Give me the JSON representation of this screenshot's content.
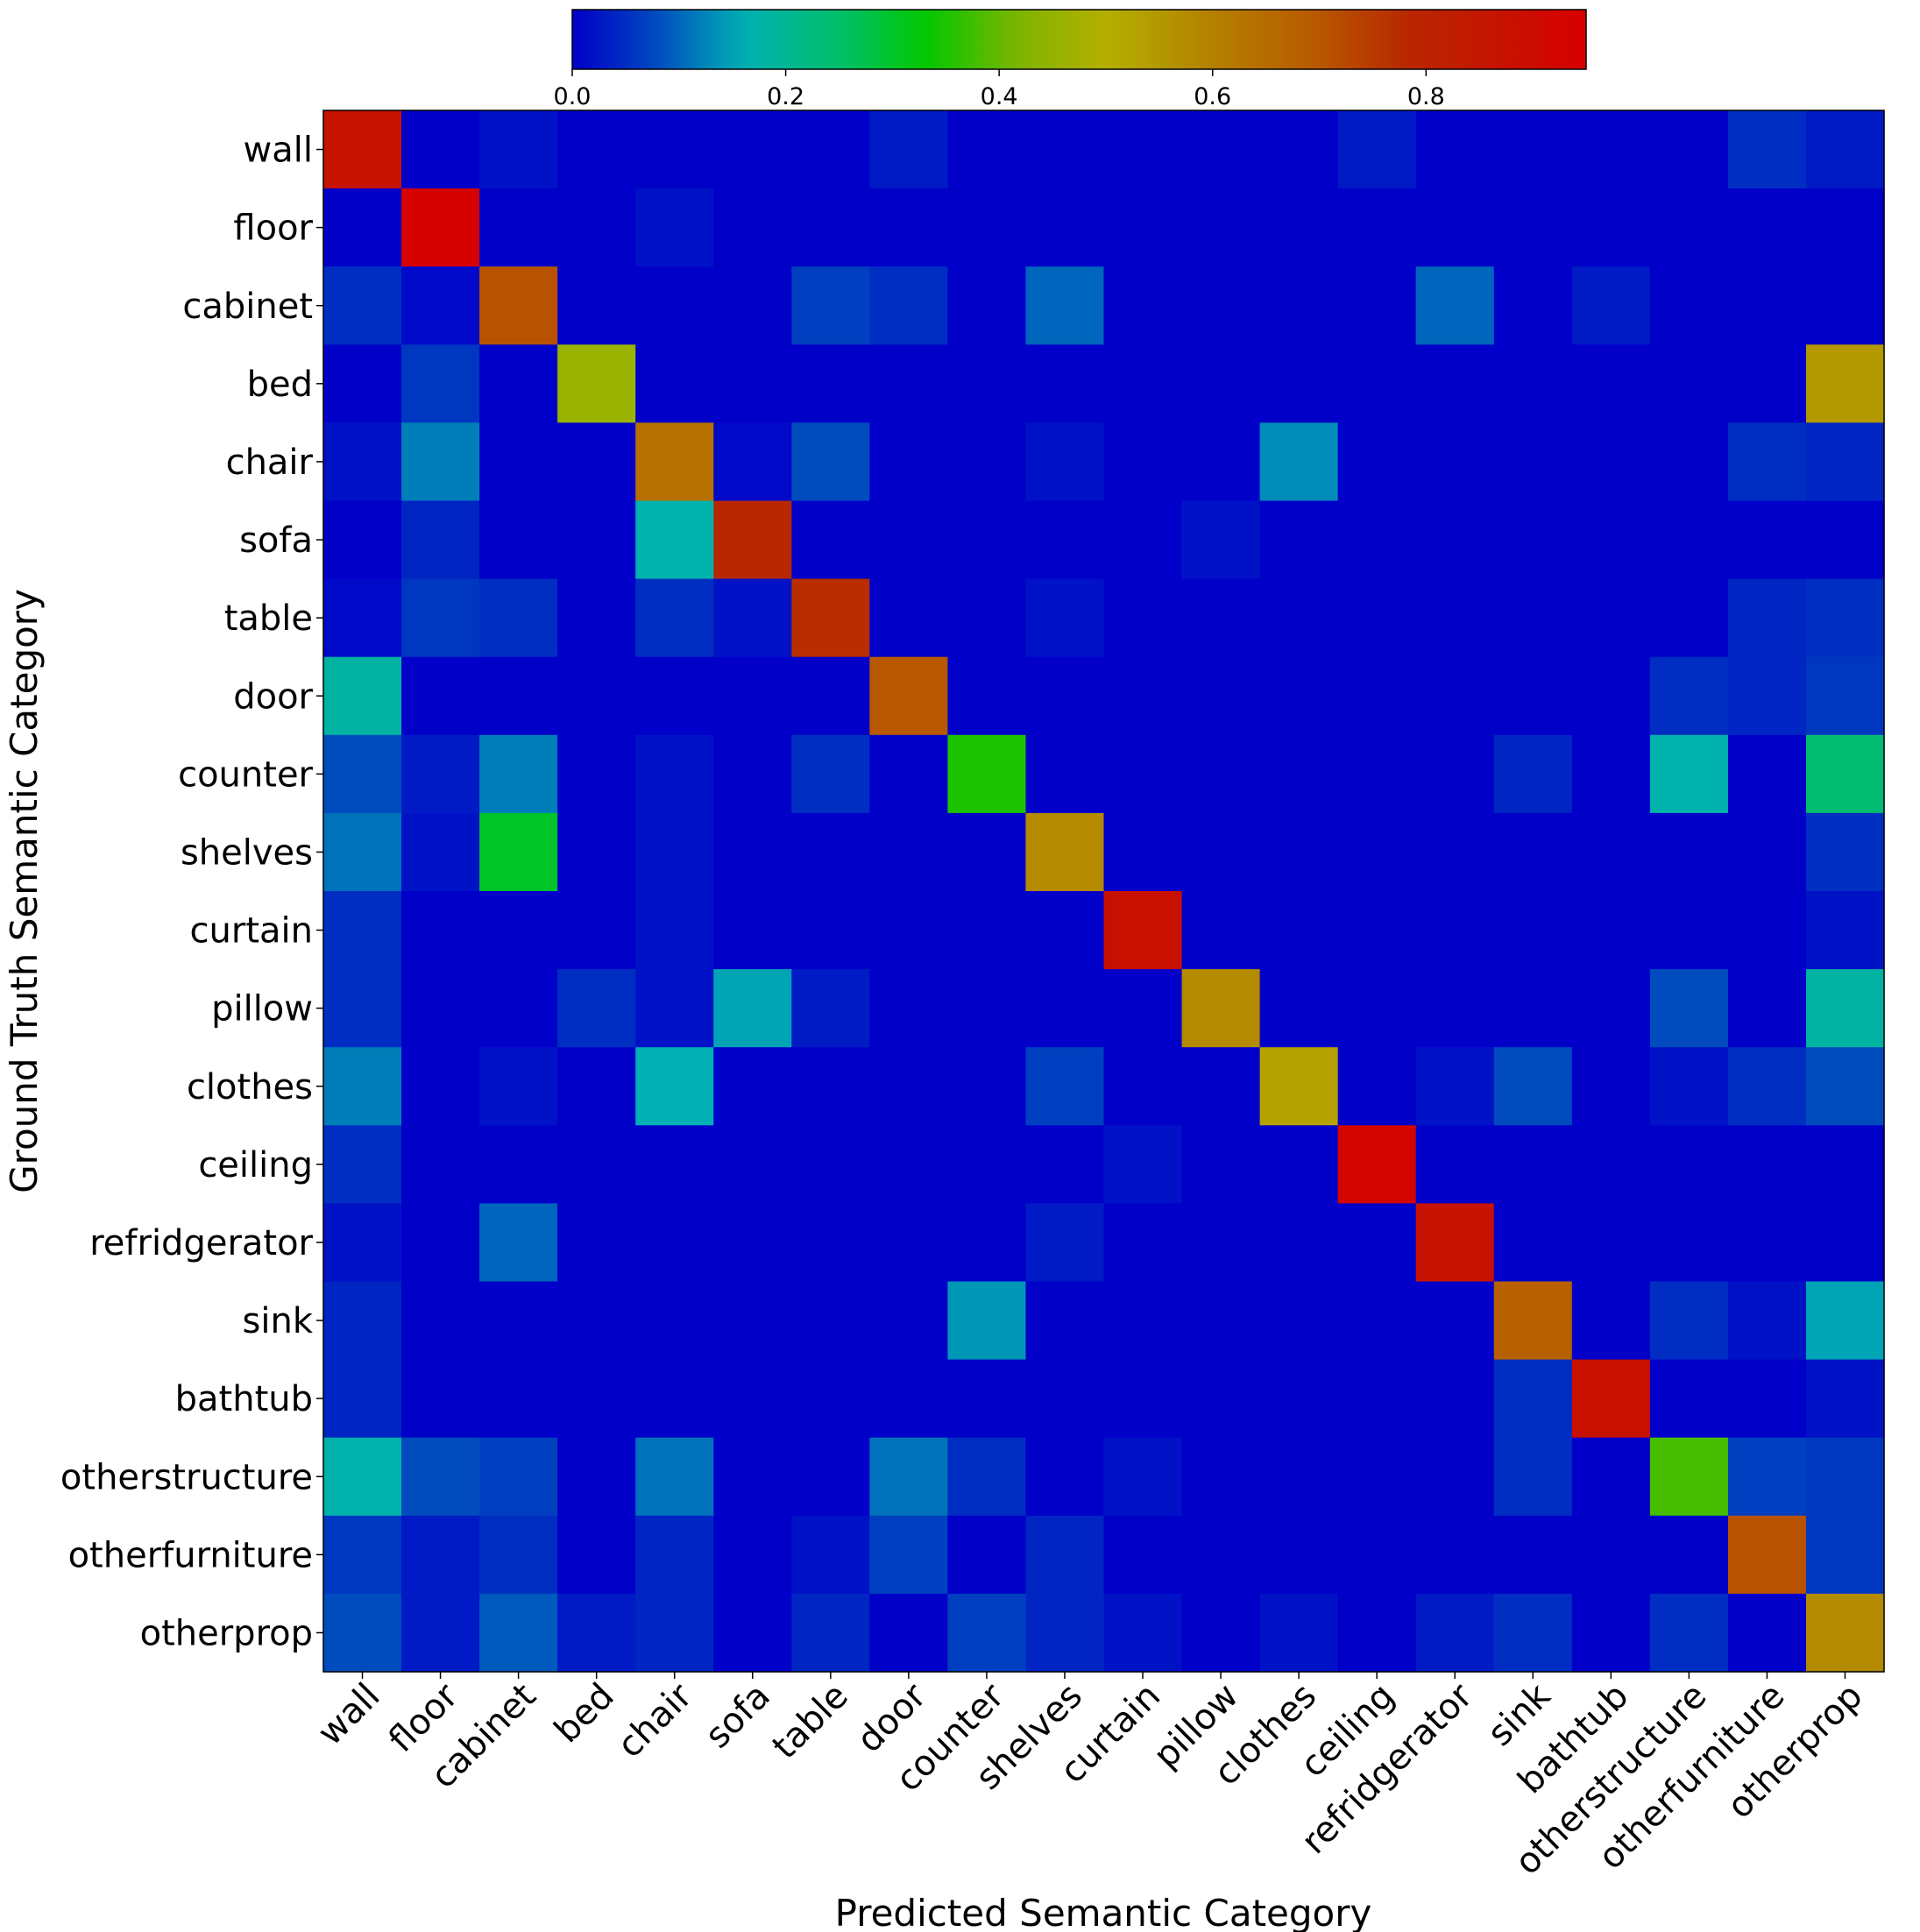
{
  "chart_data": {
    "type": "heatmap",
    "title": "",
    "xlabel": "Predicted Semantic Category",
    "ylabel": "Ground Truth Semantic Category",
    "x_categories": [
      "wall",
      "floor",
      "cabinet",
      "bed",
      "chair",
      "sofa",
      "table",
      "door",
      "counter",
      "shelves",
      "curtain",
      "pillow",
      "clothes",
      "ceiling",
      "refridgerator",
      "sink",
      "bathtub",
      "otherstructure",
      "otherfurniture",
      "otherprop"
    ],
    "y_categories": [
      "wall",
      "floor",
      "cabinet",
      "bed",
      "chair",
      "sofa",
      "table",
      "door",
      "counter",
      "shelves",
      "curtain",
      "pillow",
      "clothes",
      "ceiling",
      "refridgerator",
      "sink",
      "bathtub",
      "otherstructure",
      "otherfurniture",
      "otherprop"
    ],
    "values": [
      [
        0.87,
        0,
        0.02,
        0,
        0,
        0,
        0,
        0.03,
        0,
        0,
        0,
        0,
        0,
        0.03,
        0,
        0,
        0,
        0,
        0.05,
        0.03
      ],
      [
        0,
        0.94,
        0,
        0,
        0.02,
        0,
        0,
        0,
        0,
        0,
        0,
        0,
        0,
        0,
        0,
        0,
        0,
        0,
        0,
        0
      ],
      [
        0.05,
        0.01,
        0.71,
        0,
        0,
        0,
        0.07,
        0.05,
        0,
        0.1,
        0,
        0,
        0,
        0,
        0.1,
        0,
        0.03,
        0,
        0,
        0
      ],
      [
        0,
        0.06,
        0,
        0.46,
        0,
        0,
        0,
        0,
        0,
        0,
        0,
        0,
        0,
        0,
        0,
        0,
        0,
        0,
        0,
        0.55
      ],
      [
        0.02,
        0.12,
        0,
        0,
        0.64,
        0.01,
        0.08,
        0,
        0,
        0.02,
        0,
        0,
        0.13,
        0,
        0,
        0,
        0,
        0,
        0.05,
        0.04
      ],
      [
        0,
        0.04,
        0,
        0,
        0.17,
        0.78,
        0,
        0,
        0,
        0,
        0,
        0.02,
        0,
        0,
        0,
        0,
        0,
        0,
        0,
        0
      ],
      [
        0.01,
        0.06,
        0.05,
        0,
        0.05,
        0.02,
        0.77,
        0,
        0,
        0.02,
        0,
        0,
        0,
        0,
        0,
        0,
        0,
        0,
        0.04,
        0.05
      ],
      [
        0.18,
        0,
        0,
        0,
        0,
        0,
        0,
        0.7,
        0,
        0,
        0,
        0,
        0,
        0,
        0,
        0,
        0,
        0.05,
        0.04,
        0.06
      ],
      [
        0.08,
        0.03,
        0.12,
        0,
        0.02,
        0,
        0.05,
        0,
        0.35,
        0,
        0,
        0,
        0,
        0,
        0,
        0.04,
        0,
        0.17,
        0,
        0.24
      ],
      [
        0.11,
        0.02,
        0.3,
        0,
        0.02,
        0,
        0,
        0,
        0,
        0.58,
        0,
        0,
        0,
        0,
        0,
        0,
        0,
        0,
        0,
        0.05
      ],
      [
        0.05,
        0,
        0,
        0,
        0.02,
        0,
        0,
        0,
        0,
        0,
        0.88,
        0,
        0,
        0,
        0,
        0,
        0,
        0,
        0,
        0.02
      ],
      [
        0.05,
        0,
        0,
        0.05,
        0.02,
        0.15,
        0.03,
        0,
        0,
        0,
        0,
        0.58,
        0,
        0,
        0,
        0,
        0,
        0.08,
        0,
        0.18
      ],
      [
        0.12,
        0,
        0.02,
        0,
        0.16,
        0,
        0,
        0,
        0,
        0.07,
        0,
        0,
        0.53,
        0,
        0.02,
        0.08,
        0,
        0.02,
        0.05,
        0.08
      ],
      [
        0.05,
        0,
        0,
        0,
        0,
        0,
        0,
        0,
        0,
        0,
        0.02,
        0,
        0,
        0.93,
        0,
        0,
        0,
        0,
        0,
        0
      ],
      [
        0.02,
        0,
        0.1,
        0,
        0,
        0,
        0,
        0,
        0,
        0.03,
        0,
        0,
        0,
        0,
        0.87,
        0,
        0,
        0,
        0,
        0
      ],
      [
        0.04,
        0,
        0,
        0,
        0,
        0,
        0,
        0,
        0.14,
        0,
        0,
        0,
        0,
        0,
        0,
        0.68,
        0,
        0.05,
        0.02,
        0.15
      ],
      [
        0.04,
        0,
        0,
        0,
        0,
        0,
        0,
        0,
        0,
        0,
        0,
        0,
        0,
        0,
        0,
        0.05,
        0.88,
        0,
        0,
        0.02
      ],
      [
        0.17,
        0.08,
        0.07,
        0,
        0.11,
        0,
        0,
        0.11,
        0.05,
        0,
        0.02,
        0,
        0,
        0,
        0,
        0.05,
        0,
        0.38,
        0.07,
        0.06
      ],
      [
        0.06,
        0.03,
        0.05,
        0,
        0.04,
        0,
        0.02,
        0.07,
        0,
        0.04,
        0,
        0,
        0,
        0,
        0,
        0,
        0,
        0,
        0.71,
        0.06
      ],
      [
        0.08,
        0.03,
        0.09,
        0.03,
        0.04,
        0,
        0.04,
        0,
        0.07,
        0.04,
        0.02,
        0,
        0.02,
        0,
        0.03,
        0.05,
        0,
        0.05,
        0,
        0.58
      ]
    ],
    "colorbar": {
      "min": 0.0,
      "max": 0.95,
      "ticks": [
        0.0,
        0.2,
        0.4,
        0.6,
        0.8
      ],
      "tick_labels": [
        "0.0",
        "0.2",
        "0.4",
        "0.6",
        "0.8"
      ],
      "placement": "top",
      "colormap": "gist_ncar-like (blue-cyan-green-olive-red)"
    },
    "colormap_stops": [
      {
        "v": 0.0,
        "color": "#0000c8"
      },
      {
        "v": 0.07,
        "color": "#0040c0"
      },
      {
        "v": 0.16,
        "color": "#00b0b4"
      },
      {
        "v": 0.26,
        "color": "#00c060"
      },
      {
        "v": 0.33,
        "color": "#00c800"
      },
      {
        "v": 0.42,
        "color": "#80b400"
      },
      {
        "v": 0.5,
        "color": "#b4b000"
      },
      {
        "v": 0.6,
        "color": "#b48000"
      },
      {
        "v": 0.7,
        "color": "#b85800"
      },
      {
        "v": 0.78,
        "color": "#b82800"
      },
      {
        "v": 0.88,
        "color": "#c81000"
      },
      {
        "v": 0.95,
        "color": "#d80000"
      }
    ]
  }
}
